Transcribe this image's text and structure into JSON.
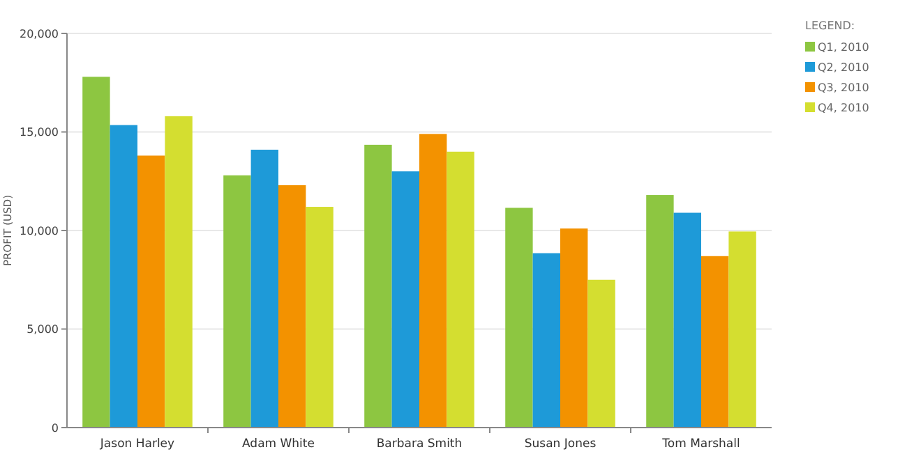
{
  "chart_data": {
    "type": "bar",
    "ylabel": "PROFIT (USD)",
    "legend_title": "LEGEND:",
    "legend": "top right",
    "grid": "y",
    "categories": [
      "Jason Harley",
      "Adam White",
      "Barbara Smith",
      "Susan Jones",
      "Tom Marshall"
    ],
    "ylim": [
      0,
      20000
    ],
    "yticks": [
      {
        "value": 0,
        "label": "0"
      },
      {
        "value": 5000,
        "label": "5,000"
      },
      {
        "value": 10000,
        "label": "10,000"
      },
      {
        "value": 15000,
        "label": "15,000"
      },
      {
        "value": 20000,
        "label": "20,000"
      }
    ],
    "series": [
      {
        "name": "Q1, 2010",
        "color": "#8dc641",
        "values": [
          17800,
          12800,
          14350,
          11150,
          11800
        ]
      },
      {
        "name": "Q2, 2010",
        "color": "#1e9ad8",
        "values": [
          15350,
          14100,
          13000,
          8850,
          10900
        ]
      },
      {
        "name": "Q3, 2010",
        "color": "#f39200",
        "values": [
          13800,
          12300,
          14900,
          10100,
          8700
        ]
      },
      {
        "name": "Q4, 2010",
        "color": "#d4de30",
        "values": [
          15800,
          11200,
          14000,
          7500,
          9950
        ]
      }
    ]
  }
}
